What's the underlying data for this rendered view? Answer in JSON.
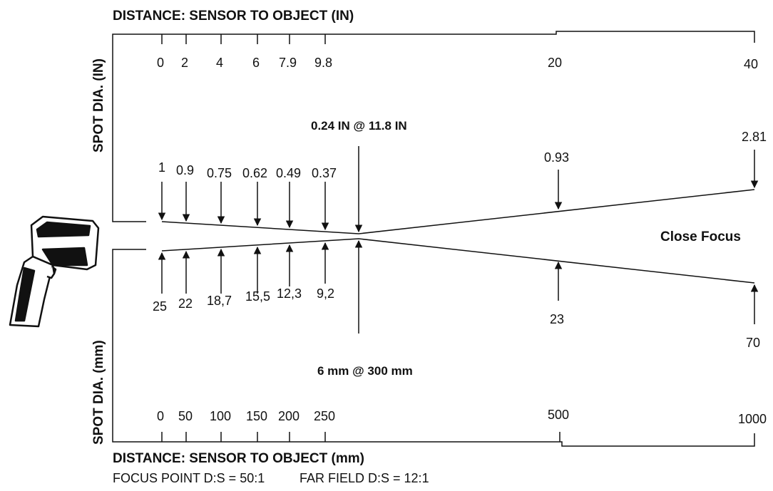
{
  "headers": {
    "top_distance_in": "DISTANCE: SENSOR TO OBJECT (IN)",
    "bottom_distance_mm": "DISTANCE: SENSOR TO OBJECT (mm)",
    "left_top_spot_in": "SPOT DIA. (IN)",
    "left_bottom_spot_mm": "SPOT DIA. (mm)"
  },
  "top_ticks": [
    "0",
    "2",
    "4",
    "6",
    "7.9",
    "9.8",
    "20",
    "40"
  ],
  "bottom_ticks": [
    "0",
    "50",
    "100",
    "150",
    "200",
    "250",
    "500",
    "1000"
  ],
  "spot_in": [
    "1",
    "0.9",
    "0.75",
    "0.62",
    "0.49",
    "0.37",
    "0.93",
    "2.81"
  ],
  "spot_mm": [
    "25",
    "22",
    "18,7",
    "15,5",
    "12,3",
    "9,2",
    "23",
    "70"
  ],
  "focus_note_in": "0.24 IN @ 11.8 IN",
  "focus_note_mm": "6 mm @ 300 mm",
  "close_focus": "Close Focus",
  "footer": {
    "focus_point": "FOCUS POINT D:S = 50:1",
    "far_field": "FAR FIELD D:S = 12:1"
  },
  "icons": {
    "device": "infrared-thermometer-icon"
  }
}
